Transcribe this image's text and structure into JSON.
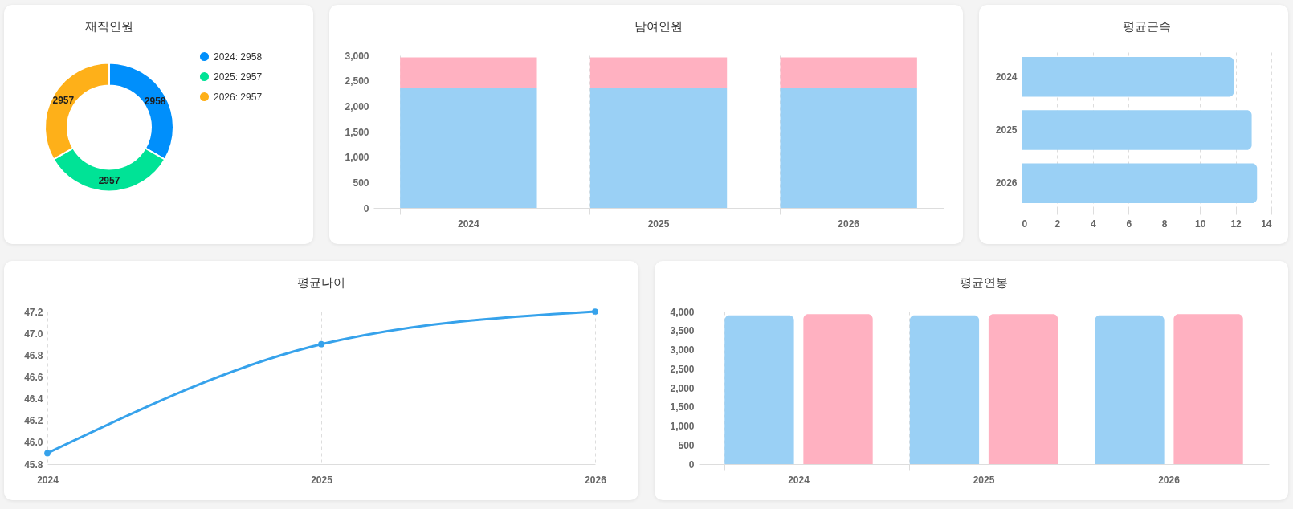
{
  "chart_data": [
    {
      "type": "donut",
      "title": "재직인원",
      "categories": [
        "2024:  2958",
        "2025:  2957",
        "2026:  2957"
      ],
      "values": [
        2958,
        2957,
        2957
      ],
      "colors": [
        "#008ffb",
        "#00e396",
        "#feb019"
      ],
      "data_labels": true,
      "legend": "right"
    },
    {
      "type": "bar",
      "title": "남여인원",
      "categories": [
        "2024",
        "2025",
        "2026"
      ],
      "stacked": true,
      "series": [
        {
          "color": "#9ad0f5",
          "values": [
            2370,
            2370,
            2370
          ]
        },
        {
          "color": "#ffb1c1",
          "values": [
            590,
            590,
            590
          ]
        }
      ],
      "ylim": [
        0,
        3000
      ],
      "yticks": [
        0,
        500,
        {
          "value": 1000,
          "label": "1,000"
        },
        {
          "value": 1500,
          "label": "1,500"
        },
        {
          "value": 2000,
          "label": "2,000"
        },
        {
          "value": 2500,
          "label": "2,500"
        },
        {
          "value": 3000,
          "label": "3,000"
        }
      ],
      "grid": "x"
    },
    {
      "type": "bar",
      "title": "평균근속",
      "orientation": "horizontal",
      "categories": [
        "2024",
        "2025",
        "2026"
      ],
      "values": [
        11.9,
        12.9,
        13.2
      ],
      "color": "#9ad0f5",
      "xlim": [
        0,
        14
      ],
      "xticks": [
        0,
        2,
        4,
        6,
        8,
        10,
        12,
        14
      ],
      "grid": "x"
    },
    {
      "type": "line",
      "title": "평균나이",
      "categories": [
        "2024",
        "2025",
        "2026"
      ],
      "series": [
        {
          "color": "#36a2eb",
          "values": [
            45.9,
            46.9,
            47.2
          ]
        }
      ],
      "ylim": [
        45.8,
        47.2
      ],
      "yticks": [
        45.8,
        {
          "value": 46,
          "label": "46.0"
        },
        46.2,
        46.4,
        46.6,
        46.8,
        {
          "value": 47,
          "label": "47.0"
        },
        47.2
      ],
      "marker": "circle",
      "grid": "x"
    },
    {
      "type": "bar",
      "title": "평균연봉",
      "categories": [
        "2024",
        "2025",
        "2026"
      ],
      "series": [
        {
          "color": "#9ad0f5",
          "values": [
            3900,
            3900,
            3900
          ]
        },
        {
          "color": "#ffb1c1",
          "values": [
            3930,
            3930,
            3930
          ]
        }
      ],
      "ylim": [
        0,
        4000
      ],
      "yticks": [
        0,
        500,
        {
          "value": 1000,
          "label": "1,000"
        },
        {
          "value": 1500,
          "label": "1,500"
        },
        {
          "value": 2000,
          "label": "2,000"
        },
        {
          "value": 2500,
          "label": "2,500"
        },
        {
          "value": 3000,
          "label": "3,000"
        },
        {
          "value": 3500,
          "label": "3,500"
        },
        {
          "value": 4000,
          "label": "4,000"
        }
      ],
      "grid": "x"
    }
  ]
}
